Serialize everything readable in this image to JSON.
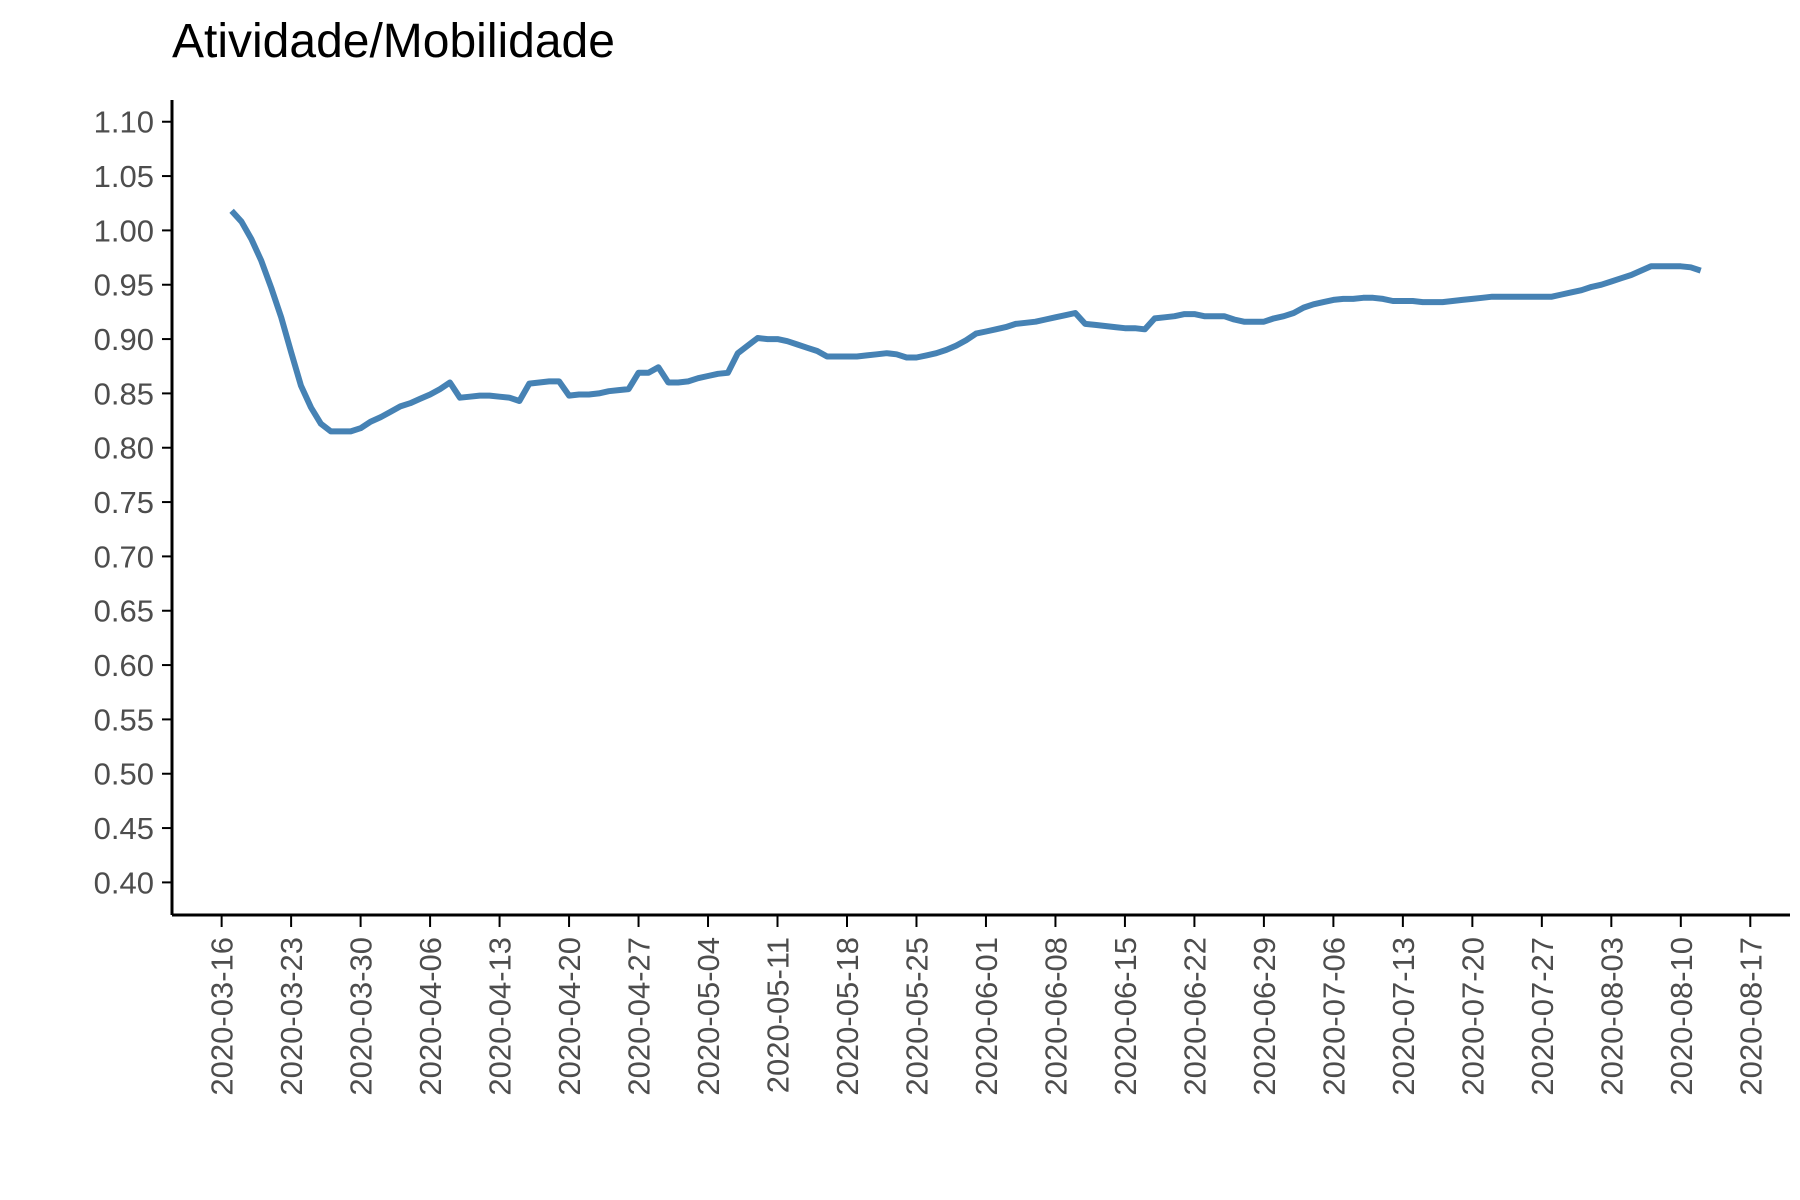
{
  "chart_data": {
    "type": "line",
    "title": "Atividade/Mobilidade",
    "xlabel": "",
    "ylabel": "",
    "line_color": "#4682b4",
    "ylim": [
      0.37,
      1.12
    ],
    "xlim": [
      "2020-03-11",
      "2020-08-21"
    ],
    "y_ticks": [
      "0.40",
      "0.45",
      "0.50",
      "0.55",
      "0.60",
      "0.65",
      "0.70",
      "0.75",
      "0.80",
      "0.85",
      "0.90",
      "0.95",
      "1.00",
      "1.05",
      "1.10"
    ],
    "x_ticks": [
      "2020-03-16",
      "2020-03-23",
      "2020-03-30",
      "2020-04-06",
      "2020-04-13",
      "2020-04-20",
      "2020-04-27",
      "2020-05-04",
      "2020-05-11",
      "2020-05-18",
      "2020-05-25",
      "2020-06-01",
      "2020-06-08",
      "2020-06-15",
      "2020-06-22",
      "2020-06-29",
      "2020-07-06",
      "2020-07-13",
      "2020-07-20",
      "2020-07-27",
      "2020-08-03",
      "2020-08-10",
      "2020-08-17"
    ],
    "grid": false,
    "series": [
      {
        "points": [
          [
            "2020-03-17",
            1.018
          ],
          [
            "2020-03-18",
            1.008
          ],
          [
            "2020-03-19",
            0.992
          ],
          [
            "2020-03-20",
            0.972
          ],
          [
            "2020-03-21",
            0.947
          ],
          [
            "2020-03-22",
            0.92
          ],
          [
            "2020-03-23",
            0.888
          ],
          [
            "2020-03-24",
            0.857
          ],
          [
            "2020-03-25",
            0.837
          ],
          [
            "2020-03-26",
            0.822
          ],
          [
            "2020-03-27",
            0.815
          ],
          [
            "2020-03-28",
            0.815
          ],
          [
            "2020-03-29",
            0.815
          ],
          [
            "2020-03-30",
            0.818
          ],
          [
            "2020-03-31",
            0.824
          ],
          [
            "2020-04-01",
            0.828
          ],
          [
            "2020-04-02",
            0.833
          ],
          [
            "2020-04-03",
            0.838
          ],
          [
            "2020-04-04",
            0.841
          ],
          [
            "2020-04-05",
            0.845
          ],
          [
            "2020-04-06",
            0.849
          ],
          [
            "2020-04-07",
            0.854
          ],
          [
            "2020-04-08",
            0.86
          ],
          [
            "2020-04-09",
            0.846
          ],
          [
            "2020-04-10",
            0.847
          ],
          [
            "2020-04-11",
            0.848
          ],
          [
            "2020-04-12",
            0.848
          ],
          [
            "2020-04-13",
            0.847
          ],
          [
            "2020-04-14",
            0.846
          ],
          [
            "2020-04-15",
            0.843
          ],
          [
            "2020-04-16",
            0.859
          ],
          [
            "2020-04-17",
            0.86
          ],
          [
            "2020-04-18",
            0.861
          ],
          [
            "2020-04-19",
            0.861
          ],
          [
            "2020-04-20",
            0.848
          ],
          [
            "2020-04-21",
            0.849
          ],
          [
            "2020-04-22",
            0.849
          ],
          [
            "2020-04-23",
            0.85
          ],
          [
            "2020-04-24",
            0.852
          ],
          [
            "2020-04-25",
            0.853
          ],
          [
            "2020-04-26",
            0.854
          ],
          [
            "2020-04-27",
            0.869
          ],
          [
            "2020-04-28",
            0.869
          ],
          [
            "2020-04-29",
            0.874
          ],
          [
            "2020-04-30",
            0.86
          ],
          [
            "2020-05-01",
            0.86
          ],
          [
            "2020-05-02",
            0.861
          ],
          [
            "2020-05-03",
            0.864
          ],
          [
            "2020-05-04",
            0.866
          ],
          [
            "2020-05-05",
            0.868
          ],
          [
            "2020-05-06",
            0.869
          ],
          [
            "2020-05-07",
            0.887
          ],
          [
            "2020-05-08",
            0.894
          ],
          [
            "2020-05-09",
            0.901
          ],
          [
            "2020-05-10",
            0.9
          ],
          [
            "2020-05-11",
            0.9
          ],
          [
            "2020-05-12",
            0.898
          ],
          [
            "2020-05-13",
            0.895
          ],
          [
            "2020-05-14",
            0.892
          ],
          [
            "2020-05-15",
            0.889
          ],
          [
            "2020-05-16",
            0.884
          ],
          [
            "2020-05-17",
            0.884
          ],
          [
            "2020-05-18",
            0.884
          ],
          [
            "2020-05-19",
            0.884
          ],
          [
            "2020-05-20",
            0.885
          ],
          [
            "2020-05-21",
            0.886
          ],
          [
            "2020-05-22",
            0.887
          ],
          [
            "2020-05-23",
            0.886
          ],
          [
            "2020-05-24",
            0.883
          ],
          [
            "2020-05-25",
            0.883
          ],
          [
            "2020-05-26",
            0.885
          ],
          [
            "2020-05-27",
            0.887
          ],
          [
            "2020-05-28",
            0.89
          ],
          [
            "2020-05-29",
            0.894
          ],
          [
            "2020-05-30",
            0.899
          ],
          [
            "2020-05-31",
            0.905
          ],
          [
            "2020-06-01",
            0.907
          ],
          [
            "2020-06-02",
            0.909
          ],
          [
            "2020-06-03",
            0.911
          ],
          [
            "2020-06-04",
            0.914
          ],
          [
            "2020-06-05",
            0.915
          ],
          [
            "2020-06-06",
            0.916
          ],
          [
            "2020-06-07",
            0.918
          ],
          [
            "2020-06-08",
            0.92
          ],
          [
            "2020-06-09",
            0.922
          ],
          [
            "2020-06-10",
            0.924
          ],
          [
            "2020-06-11",
            0.914
          ],
          [
            "2020-06-12",
            0.913
          ],
          [
            "2020-06-13",
            0.912
          ],
          [
            "2020-06-14",
            0.911
          ],
          [
            "2020-06-15",
            0.91
          ],
          [
            "2020-06-16",
            0.91
          ],
          [
            "2020-06-17",
            0.909
          ],
          [
            "2020-06-18",
            0.919
          ],
          [
            "2020-06-19",
            0.92
          ],
          [
            "2020-06-20",
            0.921
          ],
          [
            "2020-06-21",
            0.923
          ],
          [
            "2020-06-22",
            0.923
          ],
          [
            "2020-06-23",
            0.921
          ],
          [
            "2020-06-24",
            0.921
          ],
          [
            "2020-06-25",
            0.921
          ],
          [
            "2020-06-26",
            0.918
          ],
          [
            "2020-06-27",
            0.916
          ],
          [
            "2020-06-28",
            0.916
          ],
          [
            "2020-06-29",
            0.916
          ],
          [
            "2020-06-30",
            0.919
          ],
          [
            "2020-07-01",
            0.921
          ],
          [
            "2020-07-02",
            0.924
          ],
          [
            "2020-07-03",
            0.929
          ],
          [
            "2020-07-04",
            0.932
          ],
          [
            "2020-07-05",
            0.934
          ],
          [
            "2020-07-06",
            0.936
          ],
          [
            "2020-07-07",
            0.937
          ],
          [
            "2020-07-08",
            0.937
          ],
          [
            "2020-07-09",
            0.938
          ],
          [
            "2020-07-10",
            0.938
          ],
          [
            "2020-07-11",
            0.937
          ],
          [
            "2020-07-12",
            0.935
          ],
          [
            "2020-07-13",
            0.935
          ],
          [
            "2020-07-14",
            0.935
          ],
          [
            "2020-07-15",
            0.934
          ],
          [
            "2020-07-16",
            0.934
          ],
          [
            "2020-07-17",
            0.934
          ],
          [
            "2020-07-18",
            0.935
          ],
          [
            "2020-07-19",
            0.936
          ],
          [
            "2020-07-20",
            0.937
          ],
          [
            "2020-07-21",
            0.938
          ],
          [
            "2020-07-22",
            0.939
          ],
          [
            "2020-07-23",
            0.939
          ],
          [
            "2020-07-24",
            0.939
          ],
          [
            "2020-07-25",
            0.939
          ],
          [
            "2020-07-26",
            0.939
          ],
          [
            "2020-07-27",
            0.939
          ],
          [
            "2020-07-28",
            0.939
          ],
          [
            "2020-07-29",
            0.941
          ],
          [
            "2020-07-30",
            0.943
          ],
          [
            "2020-07-31",
            0.945
          ],
          [
            "2020-08-01",
            0.948
          ],
          [
            "2020-08-02",
            0.95
          ],
          [
            "2020-08-03",
            0.953
          ],
          [
            "2020-08-04",
            0.956
          ],
          [
            "2020-08-05",
            0.959
          ],
          [
            "2020-08-06",
            0.963
          ],
          [
            "2020-08-07",
            0.967
          ],
          [
            "2020-08-08",
            0.967
          ],
          [
            "2020-08-09",
            0.967
          ],
          [
            "2020-08-10",
            0.967
          ],
          [
            "2020-08-11",
            0.966
          ],
          [
            "2020-08-12",
            0.963
          ]
        ]
      }
    ]
  }
}
